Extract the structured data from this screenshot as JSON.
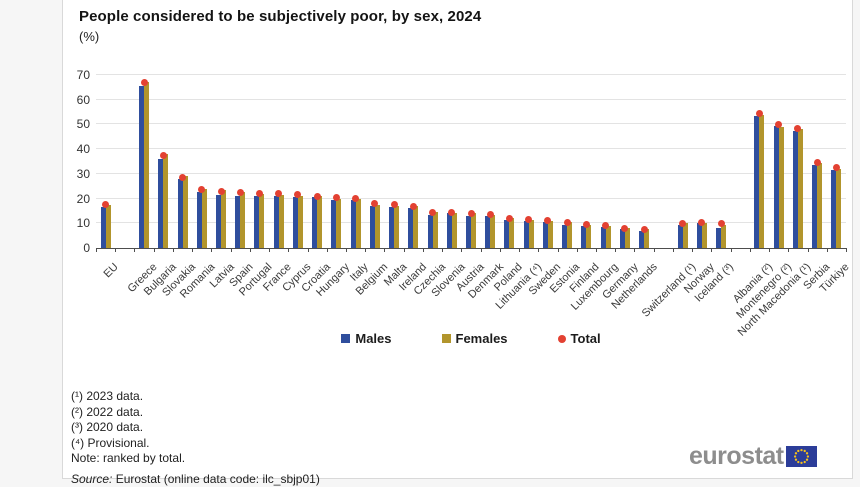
{
  "header": {
    "title": "People considered to be subjectively poor, by sex, 2024",
    "subtitle": "(%)"
  },
  "chart_data": {
    "type": "bar",
    "title": "People considered to be subjectively poor, by sex, 2024",
    "unit": "%",
    "ylim": [
      0,
      70
    ],
    "yticks": [
      0,
      10,
      20,
      30,
      40,
      50,
      60,
      70
    ],
    "grid": true,
    "legend_position": "bottom",
    "note": "ranked by total",
    "categories": [
      "EU",
      "Greece",
      "Bulgaria",
      "Slovakia",
      "Romania",
      "Latvia",
      "Spain",
      "Portugal",
      "France",
      "Cyprus",
      "Croatia",
      "Hungary",
      "Italy",
      "Belgium",
      "Malta",
      "Ireland",
      "Czechia",
      "Slovenia",
      "Austria",
      "Denmark",
      "Poland",
      "Lithuania (⁴)",
      "Sweden",
      "Estonia",
      "Finland",
      "Luxembourg",
      "Germany",
      "Netherlands",
      "Switzerland (¹)",
      "Norway",
      "Iceland (³)",
      "Albania (²)",
      "Montenegro (²)",
      "North Macedonia (¹)",
      "Serbia",
      "Türkiye"
    ],
    "gaps_after": [
      "EU",
      "Netherlands",
      "Iceland (³)"
    ],
    "series": [
      {
        "name": "Males",
        "type": "bar",
        "color": "#2f4e9d",
        "values": [
          16.5,
          65.5,
          36,
          28,
          22.5,
          21.5,
          21,
          21,
          21,
          20.5,
          20.5,
          19.5,
          19.5,
          17,
          16.5,
          16,
          13.5,
          14,
          13,
          13,
          11.5,
          11,
          10.5,
          9.5,
          9,
          8.5,
          7.5,
          7,
          9.5,
          10,
          8,
          53.5,
          49.5,
          47.5,
          33.5,
          31.5
        ]
      },
      {
        "name": "Females",
        "type": "bar",
        "color": "#b2952c",
        "values": [
          17.5,
          67,
          38,
          29,
          24,
          23.5,
          22.5,
          22,
          21.5,
          21,
          21,
          20,
          20,
          17.5,
          17,
          17,
          14.5,
          14,
          14,
          13.5,
          12,
          11.5,
          11,
          10.5,
          9.5,
          9,
          8,
          7.5,
          10,
          10,
          9.5,
          54,
          49,
          48,
          34.5,
          32
        ]
      },
      {
        "name": "Total",
        "type": "point",
        "color": "#e34132",
        "values": [
          17.5,
          67,
          37.5,
          28.5,
          23.5,
          23,
          22.5,
          22,
          22,
          21.5,
          21,
          20.5,
          20,
          18,
          17.5,
          17,
          14.5,
          14.5,
          14,
          13.5,
          12,
          11.5,
          11,
          10.5,
          9.5,
          9,
          8,
          7.5,
          10,
          10.5,
          10,
          54.5,
          50,
          48.5,
          34.5,
          32.5
        ]
      }
    ]
  },
  "footnotes": [
    "(¹) 2023 data.",
    "(²) 2022 data.",
    "(³) 2020 data.",
    "(⁴) Provisional.",
    "Note: ranked by total."
  ],
  "source": {
    "label": "Source:",
    "text": " Eurostat (online data code: ilc_sbjp01)"
  },
  "logo": {
    "text": "eurostat"
  }
}
